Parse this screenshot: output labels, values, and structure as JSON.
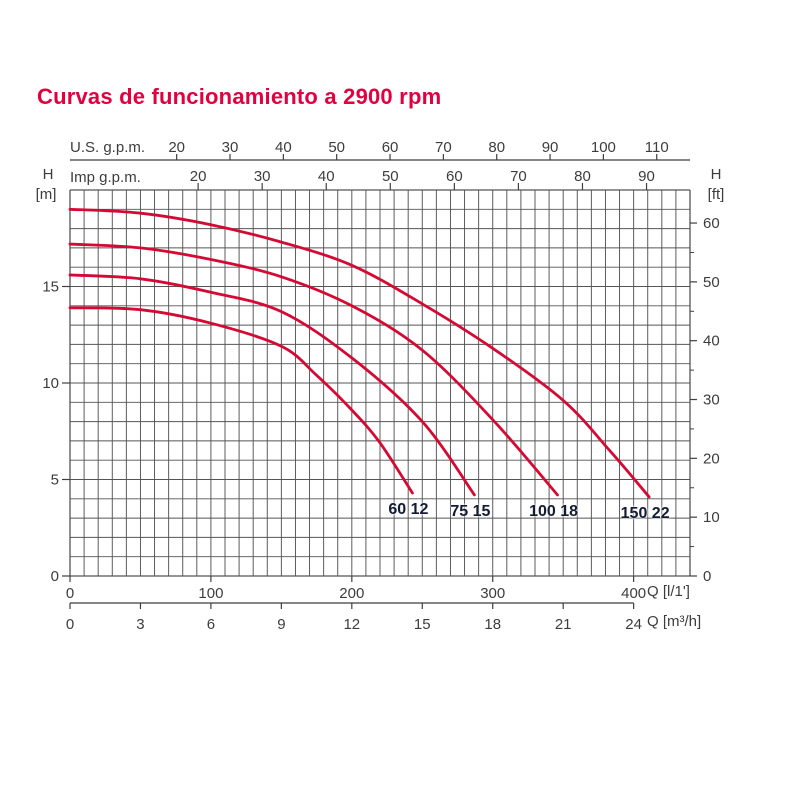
{
  "title": {
    "text": "Curvas de funcionamiento a 2900 rpm",
    "color": "#e10040"
  },
  "axis_labels": {
    "us_gpm": "U.S. g.p.m.",
    "imp_gpm": "Imp g.p.m.",
    "h_left": "H",
    "m_left": "[m]",
    "h_right": "H",
    "ft_right": "[ft]",
    "q_lmin": "Q [l/1']",
    "q_m3h": "Q [m³/h]"
  },
  "chart_data": {
    "type": "line",
    "title": "Curvas de funcionamiento a 2900 rpm",
    "grid": {
      "on": true,
      "x_step_l_min": 10,
      "y_step_m": 1
    },
    "x_axis_primary": {
      "label": "Q [l/1']",
      "ticks": [
        0,
        100,
        200,
        300,
        400
      ],
      "range": [
        0,
        440
      ]
    },
    "x_axis_m3h": {
      "label": "Q [m³/h]",
      "ticks": [
        0,
        3,
        6,
        9,
        12,
        15,
        18,
        21,
        24
      ],
      "l_min_per_unit": 16.6667
    },
    "x_axis_us_gpm": {
      "label": "U.S. g.p.m.",
      "ticks": [
        20,
        30,
        40,
        50,
        60,
        70,
        80,
        90,
        100,
        110
      ],
      "l_min_per_unit": 3.7854
    },
    "x_axis_imp_gpm": {
      "label": "Imp g.p.m.",
      "ticks": [
        20,
        30,
        40,
        50,
        60,
        70,
        80,
        90
      ],
      "l_min_per_unit": 4.5461
    },
    "y_axis_m": {
      "label": "H [m]",
      "ticks": [
        0,
        5,
        10,
        15
      ],
      "range": [
        0,
        20
      ]
    },
    "y_axis_ft": {
      "label": "H [ft]",
      "ticks": [
        0,
        10,
        20,
        30,
        40,
        50,
        60
      ],
      "minor_step": 5,
      "m_per_unit": 0.3048
    },
    "curve_color": "#d40a35",
    "series": [
      {
        "name": "60 12",
        "points": [
          [
            0,
            13.9
          ],
          [
            50,
            13.8
          ],
          [
            100,
            13.1
          ],
          [
            150,
            11.9
          ],
          [
            175,
            10.4
          ],
          [
            200,
            8.6
          ],
          [
            220,
            6.9
          ],
          [
            243,
            4.3
          ]
        ]
      },
      {
        "name": "75 15",
        "points": [
          [
            0,
            15.6
          ],
          [
            50,
            15.4
          ],
          [
            100,
            14.7
          ],
          [
            150,
            13.7
          ],
          [
            200,
            11.3
          ],
          [
            250,
            8.0
          ],
          [
            287,
            4.2
          ]
        ]
      },
      {
        "name": "100 18",
        "points": [
          [
            0,
            17.2
          ],
          [
            50,
            17.0
          ],
          [
            100,
            16.4
          ],
          [
            150,
            15.5
          ],
          [
            200,
            14.0
          ],
          [
            250,
            11.7
          ],
          [
            300,
            8.1
          ],
          [
            346,
            4.2
          ]
        ]
      },
      {
        "name": "150 22",
        "points": [
          [
            0,
            19.0
          ],
          [
            50,
            18.8
          ],
          [
            100,
            18.2
          ],
          [
            150,
            17.3
          ],
          [
            200,
            16.1
          ],
          [
            250,
            14.1
          ],
          [
            300,
            11.8
          ],
          [
            350,
            9.1
          ],
          [
            383,
            6.5
          ],
          [
            411,
            4.1
          ]
        ]
      }
    ]
  }
}
